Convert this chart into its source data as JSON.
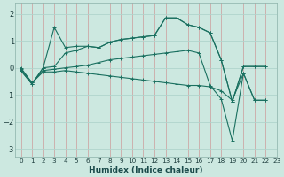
{
  "xlabel": "Humidex (Indice chaleur)",
  "xlim": [
    -0.5,
    23
  ],
  "ylim": [
    -3.3,
    2.4
  ],
  "xticks": [
    0,
    1,
    2,
    3,
    4,
    5,
    6,
    7,
    8,
    9,
    10,
    11,
    12,
    13,
    14,
    15,
    16,
    17,
    18,
    19,
    20,
    21,
    22,
    23
  ],
  "yticks": [
    -3,
    -2,
    -1,
    0,
    1,
    2
  ],
  "bg_color": "#cce8e0",
  "vgrid_color": "#cc8888",
  "hgrid_color": "#b0d4cc",
  "line_color": "#1a7060",
  "line1_x": [
    0,
    1,
    2,
    3,
    4,
    5,
    6,
    7,
    8,
    9,
    10,
    11,
    12,
    13,
    14,
    15,
    16,
    17,
    18,
    19,
    20,
    21,
    22
  ],
  "line1_y": [
    -0.1,
    -0.6,
    0.0,
    1.5,
    0.75,
    0.8,
    0.8,
    0.75,
    0.95,
    1.05,
    1.1,
    1.15,
    1.2,
    1.85,
    1.85,
    1.6,
    1.5,
    1.3,
    0.3,
    -1.25,
    0.05,
    0.05,
    0.05
  ],
  "line2_x": [
    0,
    1,
    2,
    3,
    4,
    5,
    6,
    7,
    8,
    9,
    10,
    11,
    12,
    13,
    14,
    15,
    16,
    17,
    18,
    19,
    20,
    21,
    22
  ],
  "line2_y": [
    -0.1,
    -0.6,
    0.0,
    0.05,
    0.55,
    0.65,
    0.8,
    0.75,
    0.95,
    1.05,
    1.1,
    1.15,
    1.2,
    1.85,
    1.85,
    1.6,
    1.5,
    1.3,
    0.3,
    -1.25,
    0.05,
    0.05,
    0.05
  ],
  "line3_x": [
    0,
    1,
    2,
    3,
    4,
    5,
    6,
    7,
    8,
    9,
    10,
    11,
    12,
    13,
    14,
    15,
    16,
    17,
    18,
    19,
    20,
    21,
    22
  ],
  "line3_y": [
    0.0,
    -0.55,
    -0.1,
    -0.05,
    0.0,
    0.05,
    0.1,
    0.2,
    0.3,
    0.35,
    0.4,
    0.45,
    0.5,
    0.55,
    0.6,
    0.65,
    0.55,
    -0.65,
    -1.15,
    -2.7,
    -0.2,
    -1.2,
    -1.2
  ],
  "line4_x": [
    0,
    1,
    2,
    3,
    4,
    5,
    6,
    7,
    8,
    9,
    10,
    11,
    12,
    13,
    14,
    15,
    16,
    17,
    18,
    19,
    20,
    21,
    22
  ],
  "line4_y": [
    -0.05,
    -0.55,
    -0.15,
    -0.15,
    -0.1,
    -0.15,
    -0.2,
    -0.25,
    -0.3,
    -0.35,
    -0.4,
    -0.45,
    -0.5,
    -0.55,
    -0.6,
    -0.65,
    -0.65,
    -0.7,
    -0.85,
    -1.2,
    -0.2,
    -1.2,
    -1.2
  ]
}
